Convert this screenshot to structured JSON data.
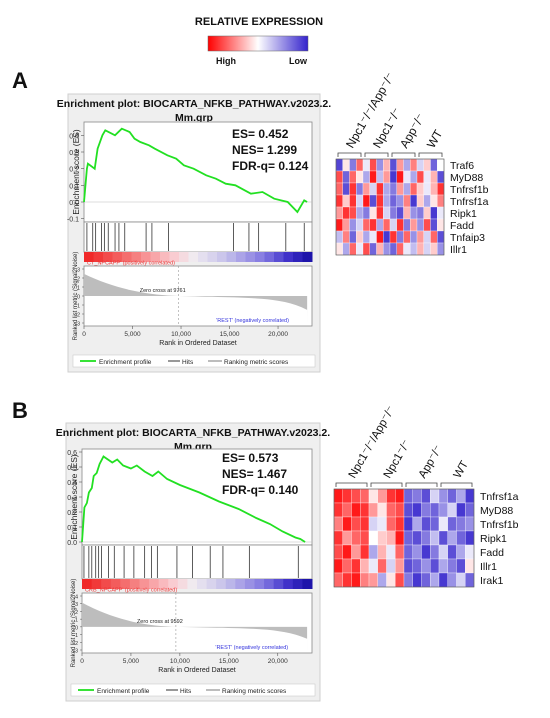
{
  "legend": {
    "title": "RELATIVE EXPRESSION",
    "low_end_label": "High",
    "high_end_label": "Low"
  },
  "panel_labels": [
    "A",
    "B"
  ],
  "panels": [
    {
      "label": "A",
      "gsea": {
        "title_line1": "Enrichment plot: BIOCARTA_NFKB_PATHWAY.v2023.2.",
        "title_line2": "Mm.grp",
        "stats": {
          "es": "ES= 0.452",
          "nes": "NES= 1.299",
          "fdr": "FDR-q= 0.124"
        },
        "es_axis_label": "Enrichment score (ES)",
        "es_ticks": [
          "0.4",
          "0.3",
          "0.2",
          "0.1",
          "0.0",
          "-0.1"
        ],
        "metric_axis_label": "Ranked list metric (Signal2Noise)",
        "metric_ticks": [
          "3",
          "2",
          "1",
          "0",
          "-1",
          "-2",
          "-3"
        ],
        "x_axis_label": "Rank in Ordered Dataset",
        "x_ticks": [
          "0",
          "5,000",
          "10,000",
          "15,000",
          "20,000"
        ],
        "pos_label": "'CT_NPCAPP' (positively correlated)",
        "neg_label": "'REST' (negatively correlated)",
        "zero_cross": "Zero cross at 9761",
        "legend_items": [
          "Enrichment profile",
          "Hits",
          "Ranking metric scores"
        ]
      },
      "heatmap": {
        "groups": [
          "Npc1⁻/⁻/App⁻/⁻",
          "Npc1⁻/⁻",
          "App⁻/⁻",
          "WT"
        ],
        "genes": [
          "Traf6",
          "MyD88",
          "Tnfrsf1b",
          "Tnfrsf1a",
          "Ripk1",
          "Fadd",
          "Tnfaip3",
          "Illr1"
        ]
      }
    },
    {
      "label": "B",
      "gsea": {
        "title_line1": "Enrichment plot: BIOCARTA_NFKB_PATHWAY.v2023.2.",
        "title_line2": "Mm.grp",
        "stats": {
          "es": "ES= 0.573",
          "nes": "NES= 1.467",
          "fdr": "FDR-q= 0.140"
        },
        "es_axis_label": "Enrichment score (ES)",
        "es_ticks": [
          "0.6",
          "0.5",
          "0.4",
          "0.3",
          "0.2",
          "0.1",
          "0.0"
        ],
        "metric_axis_label": "Ranked list metric (Signal2Noise)",
        "metric_ticks": [
          "4",
          "3",
          "2",
          "1",
          "0",
          "-1",
          "-2",
          "-3"
        ],
        "x_axis_label": "Rank in Ordered Dataset",
        "x_ticks": [
          "0",
          "5,000",
          "10,000",
          "15,000",
          "20,000"
        ],
        "pos_label": "'CRB_NPCAPP' (positively correlated)",
        "neg_label": "'REST' (negatively correlated)",
        "zero_cross": "Zero cross at 9592",
        "legend_items": [
          "Enrichment profile",
          "Hits",
          "Ranking metric scores"
        ]
      },
      "heatmap": {
        "groups": [
          "Npc1⁻/⁻/App⁻/⁻",
          "Npc1⁻/⁻",
          "App⁻/⁻",
          "WT"
        ],
        "genes": [
          "Tnfrsf1a",
          "MyD88",
          "Tnfrsf1b",
          "Ripk1",
          "Fadd",
          "Illr1",
          "Irak1"
        ]
      }
    }
  ],
  "colors": {
    "enrichment_line": "#22e022",
    "high": "#ff0000",
    "low": "#3322cc",
    "panel_bg": "#efefef"
  },
  "chart_data": [
    {
      "type": "line",
      "panel": "A",
      "series": [
        {
          "x": [
            0,
            300,
            400,
            1100,
            1400,
            1900,
            2200,
            3200,
            3900,
            4700,
            5200,
            5800,
            6700,
            7300,
            8600,
            9500,
            10300,
            11300,
            12600,
            13600,
            14600,
            15600,
            17200,
            18400,
            19600,
            21000,
            22000,
            22700,
            23000
          ],
          "y": [
            0.0,
            0.2,
            0.23,
            0.2,
            0.32,
            0.4,
            0.43,
            0.4,
            0.44,
            0.42,
            0.38,
            0.36,
            0.34,
            0.32,
            0.28,
            0.26,
            0.22,
            0.2,
            0.16,
            0.14,
            0.11,
            0.1,
            0.05,
            0.06,
            0.02,
            0.0,
            -0.06,
            0.01,
            0.0
          ]
        }
      ],
      "ylim": [
        -0.12,
        0.48
      ],
      "xlim": [
        0,
        23500
      ],
      "hits": [
        300,
        900,
        1200,
        1800,
        2100,
        2500,
        3200,
        3600,
        4200,
        6400,
        7000,
        8700,
        15400,
        17000,
        18000,
        20800,
        22700
      ],
      "heatmap_values": [
        [
          0.92,
          0.45,
          0.8,
          0.2,
          0.55,
          0.15,
          0.75,
          0.35,
          0.9,
          0.3,
          0.7,
          0.25,
          0.6,
          0.4,
          0.85,
          0.5
        ],
        [
          0.15,
          0.85,
          0.2,
          0.45,
          0.7,
          0.05,
          0.65,
          0.3,
          0.95,
          0.05,
          0.55,
          0.7,
          0.15,
          0.55,
          0.35,
          0.9
        ],
        [
          0.2,
          0.9,
          0.1,
          0.8,
          0.3,
          0.6,
          0.1,
          0.7,
          0.8,
          0.3,
          0.7,
          0.2,
          0.4,
          0.55,
          0.35,
          0.1
        ],
        [
          0.1,
          0.4,
          0.1,
          0.6,
          0.05,
          0.9,
          0.1,
          0.7,
          0.85,
          0.75,
          0.25,
          0.95,
          0.4,
          0.7,
          0.45,
          0.25
        ],
        [
          0.3,
          0.1,
          0.15,
          0.7,
          0.8,
          0.45,
          0.1,
          0.6,
          0.8,
          0.9,
          0.35,
          0.75,
          0.8,
          0.4,
          0.95,
          0.55
        ],
        [
          0.05,
          0.3,
          0.75,
          0.6,
          0.2,
          0.1,
          0.7,
          0.2,
          0.6,
          0.1,
          0.8,
          0.3,
          0.75,
          0.15,
          0.9,
          0.45
        ],
        [
          0.65,
          0.25,
          0.85,
          0.4,
          0.7,
          0.55,
          0.05,
          0.95,
          0.1,
          0.8,
          0.2,
          0.75,
          0.3,
          0.6,
          0.2,
          0.9
        ],
        [
          0.45,
          0.7,
          0.2,
          0.55,
          0.15,
          0.85,
          0.35,
          0.75,
          0.85,
          0.2,
          0.55,
          0.65,
          0.35,
          0.6,
          0.4,
          0.75
        ]
      ]
    },
    {
      "type": "line",
      "panel": "B",
      "series": [
        {
          "x": [
            0,
            250,
            500,
            700,
            1000,
            1200,
            1500,
            1800,
            2200,
            3100,
            3600,
            4200,
            5000,
            5600,
            6400,
            7200,
            7800,
            8700,
            10000,
            12000,
            14000,
            16000,
            17800,
            19200,
            20500,
            21800,
            22300,
            22800
          ],
          "y": [
            0.0,
            0.23,
            0.26,
            0.33,
            0.36,
            0.44,
            0.46,
            0.52,
            0.57,
            0.53,
            0.55,
            0.51,
            0.49,
            0.51,
            0.47,
            0.44,
            0.47,
            0.42,
            0.38,
            0.33,
            0.27,
            0.22,
            0.16,
            0.12,
            0.07,
            0.03,
            0.02,
            0.0
          ]
        }
      ],
      "ylim": [
        -0.02,
        0.62
      ],
      "xlim": [
        0,
        23500
      ],
      "hits": [
        200,
        700,
        1000,
        1400,
        1700,
        2000,
        2700,
        3300,
        4300,
        5300,
        6400,
        7100,
        7700,
        9700,
        11300,
        13100,
        14400,
        17100,
        22100
      ],
      "heatmap_values": [
        [
          0.05,
          0.1,
          0.15,
          0.2,
          0.45,
          0.3,
          0.1,
          0.05,
          0.85,
          0.8,
          0.9,
          0.6,
          0.75,
          0.85,
          0.7,
          0.95
        ],
        [
          0.1,
          0.2,
          0.05,
          0.1,
          0.3,
          0.45,
          0.2,
          0.15,
          0.9,
          0.95,
          0.8,
          0.85,
          0.75,
          0.6,
          0.95,
          0.85
        ],
        [
          0.25,
          0.05,
          0.15,
          0.1,
          0.6,
          0.55,
          0.2,
          0.1,
          0.95,
          0.7,
          0.9,
          0.85,
          0.55,
          0.85,
          0.8,
          0.75
        ],
        [
          0.1,
          0.3,
          0.2,
          0.15,
          0.5,
          0.4,
          0.35,
          0.05,
          0.85,
          0.9,
          0.8,
          0.65,
          0.9,
          0.7,
          0.85,
          0.95
        ],
        [
          0.15,
          0.05,
          0.3,
          0.1,
          0.7,
          0.35,
          0.55,
          0.2,
          0.85,
          0.75,
          0.95,
          0.8,
          0.6,
          0.9,
          0.7,
          0.55
        ],
        [
          0.05,
          0.2,
          0.1,
          0.35,
          0.55,
          0.2,
          0.6,
          0.3,
          0.9,
          0.85,
          0.75,
          0.9,
          0.7,
          0.8,
          0.9,
          0.45
        ],
        [
          0.2,
          0.1,
          0.05,
          0.25,
          0.3,
          0.7,
          0.45,
          0.15,
          0.8,
          0.95,
          0.85,
          0.7,
          0.95,
          0.75,
          0.6,
          0.85
        ]
      ]
    }
  ]
}
